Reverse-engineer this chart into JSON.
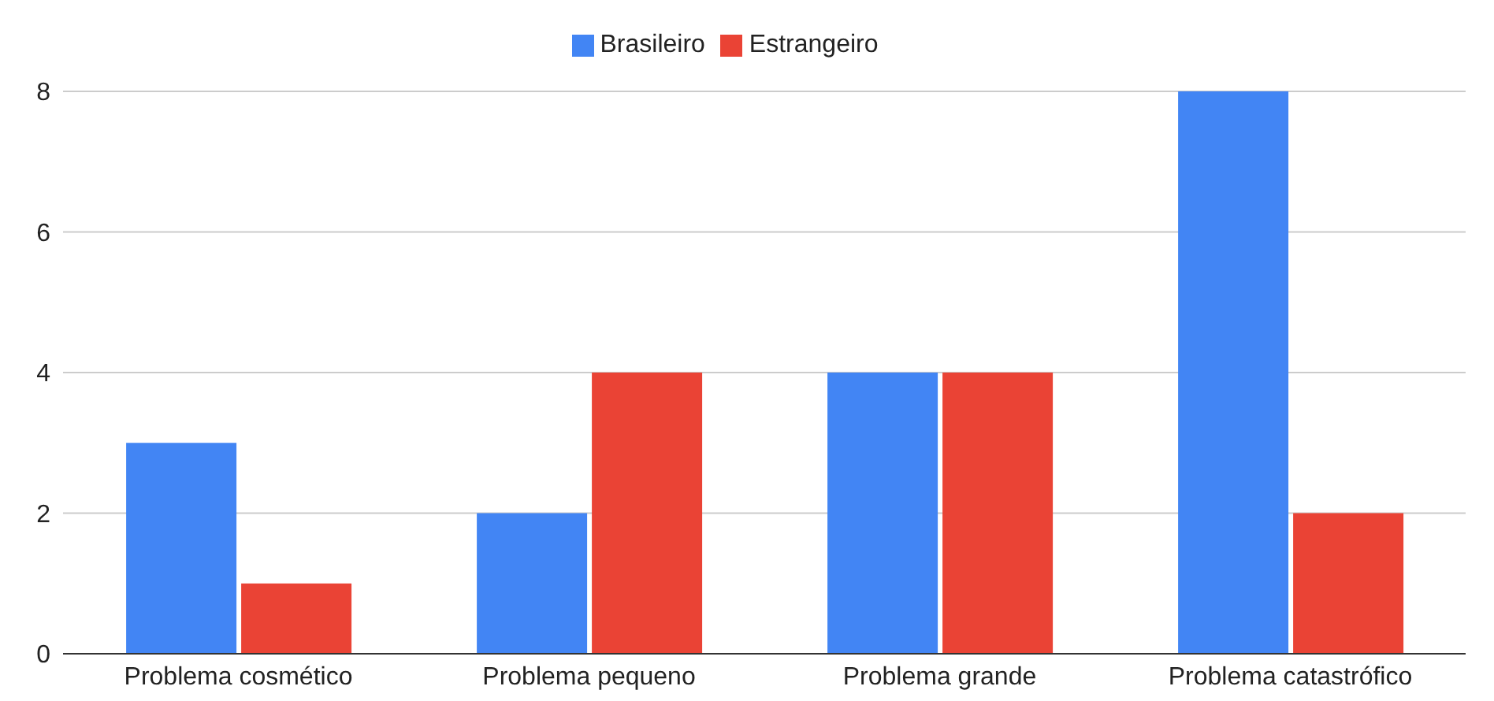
{
  "chart_data": {
    "type": "bar",
    "categories": [
      "Problema cosmético",
      "Problema pequeno",
      "Problema grande",
      "Problema catastrófico"
    ],
    "series": [
      {
        "name": "Brasileiro",
        "color": "#4285f4",
        "values": [
          3,
          2,
          4,
          8
        ]
      },
      {
        "name": "Estrangeiro",
        "color": "#ea4335",
        "values": [
          1,
          4,
          4,
          2
        ]
      }
    ],
    "ylim": [
      0,
      8
    ],
    "yticks": [
      0,
      2,
      4,
      6,
      8
    ],
    "grid": "y",
    "legend": "top"
  }
}
